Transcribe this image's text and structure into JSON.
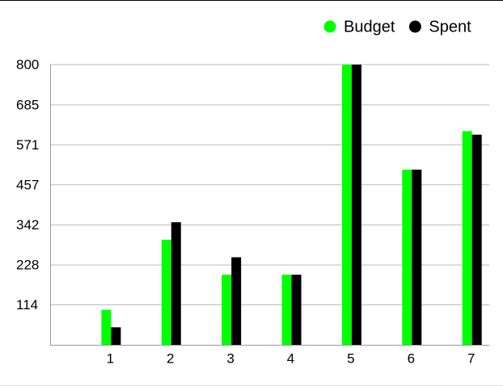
{
  "chart_data": {
    "type": "bar",
    "x": [
      1,
      2,
      3,
      4,
      5,
      6,
      7
    ],
    "xlim": [
      0,
      7.3
    ],
    "xticks": [
      1,
      2,
      3,
      4,
      5,
      6,
      7
    ],
    "series": [
      {
        "name": "Budget",
        "color": "#00ff00",
        "values": [
          100,
          300,
          200,
          200,
          800,
          500,
          610
        ]
      },
      {
        "name": "Spent",
        "color": "#000000",
        "values": [
          50,
          350,
          250,
          200,
          800,
          500,
          600
        ]
      }
    ],
    "ylim": [
      0,
      800
    ],
    "yticks": [
      114,
      228,
      342,
      457,
      571,
      685,
      800
    ],
    "grid": true,
    "legend": "top-right"
  }
}
